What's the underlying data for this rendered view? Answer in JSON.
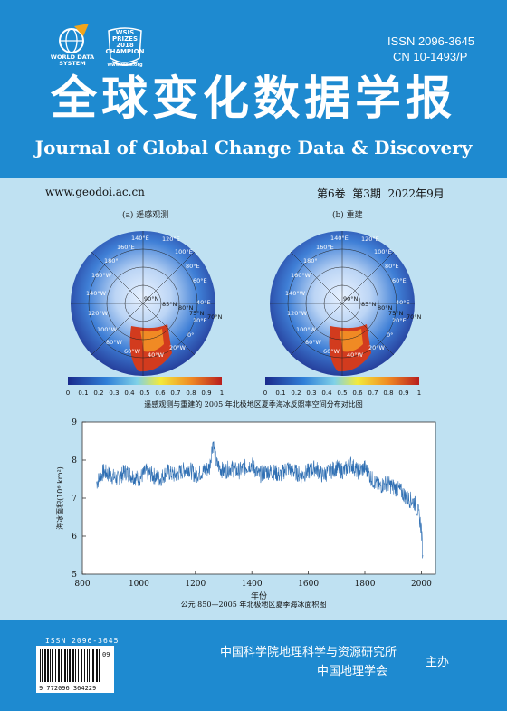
{
  "header": {
    "wds_logo_text": "WORLD DATA SYSTEM",
    "wsis_logo_text": "WSIS PRIZES 2018 CHAMPION",
    "wsis_logo_sub": "www.wsis.org",
    "issn": "ISSN 2096-3645",
    "cn": "CN 10-1493/P",
    "title_cn": "全球变化数据学报",
    "title_en": "Journal of Global Change Data & Discovery"
  },
  "issue_bar": {
    "url": "www.geodoi.ac.cn",
    "issue": "第6卷  第3期  2022年9月"
  },
  "maps": {
    "left_label": "(a) 遥感观测",
    "right_label": "(b) 重建",
    "lon_labels": [
      "140°E",
      "120°E",
      "160°E",
      "100°E",
      "180°",
      "80°E",
      "160°W",
      "60°E",
      "140°W",
      "40°E",
      "120°W",
      "20°E",
      "100°W",
      "0°",
      "80°W",
      "20°W",
      "60°W",
      "40°W"
    ],
    "lat_labels": [
      "90°N",
      "85°N",
      "80°N",
      "75°N",
      "70°N"
    ],
    "colorbar_ticks": [
      "0",
      "0.1",
      "0.2",
      "0.3",
      "0.4",
      "0.5",
      "0.6",
      "0.7",
      "0.8",
      "0.9",
      "1"
    ],
    "caption": "遥感观测与重建的 2005 年北极地区夏季海冰反照率空间分布对比图"
  },
  "chart_data": {
    "type": "line",
    "title": "公元 850—2005 年北极地区夏季海冰面积图",
    "xlabel": "年份",
    "ylabel": "海冰面积(10⁶ km²)",
    "xlim": [
      800,
      2050
    ],
    "ylim": [
      5,
      9
    ],
    "xticks": [
      800,
      1000,
      1200,
      1400,
      1600,
      1800,
      2000
    ],
    "yticks": [
      5,
      6,
      7,
      8,
      9
    ],
    "series": [
      {
        "color": "#2f6fb3",
        "x": [
          850,
          875,
          900,
          925,
          950,
          975,
          1000,
          1025,
          1050,
          1075,
          1100,
          1125,
          1150,
          1175,
          1200,
          1225,
          1250,
          1262,
          1275,
          1300,
          1325,
          1350,
          1375,
          1400,
          1425,
          1450,
          1475,
          1500,
          1525,
          1550,
          1575,
          1600,
          1625,
          1650,
          1675,
          1700,
          1725,
          1750,
          1775,
          1800,
          1825,
          1850,
          1875,
          1900,
          1925,
          1950,
          1975,
          1990,
          2000,
          2005
        ],
        "values": [
          7.4,
          7.7,
          7.6,
          7.5,
          7.7,
          7.6,
          7.5,
          7.7,
          7.6,
          7.5,
          7.7,
          7.6,
          7.7,
          7.8,
          7.6,
          7.7,
          7.8,
          8.5,
          7.9,
          7.7,
          7.8,
          7.7,
          7.8,
          7.9,
          7.6,
          7.7,
          7.7,
          7.6,
          7.8,
          7.7,
          7.6,
          7.7,
          7.8,
          7.6,
          7.7,
          7.8,
          7.7,
          7.9,
          7.7,
          7.8,
          7.5,
          7.3,
          7.4,
          7.3,
          7.2,
          7.0,
          6.9,
          6.6,
          6.2,
          5.5
        ]
      }
    ]
  },
  "footer": {
    "barcode_issn": "ISSN 2096-3645",
    "barcode_number": "9 772096 364229",
    "barcode_addon": "09",
    "org1": "中国科学院地理科学与资源研究所",
    "org2": "中国地理学会",
    "host": "主办"
  },
  "colors": {
    "blue_band": "#1e8ad0",
    "background": "#bfe1f2",
    "series": "#2f6fb3"
  }
}
